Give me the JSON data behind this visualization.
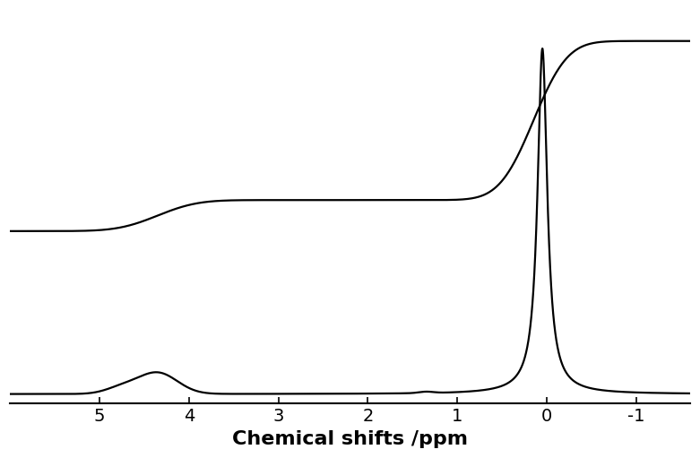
{
  "title": "",
  "xlabel": "Chemical shifts /ppm",
  "xlabel_fontsize": 16,
  "xlim": [
    6.0,
    -1.6
  ],
  "background_color": "#ffffff",
  "line_color": "#000000",
  "line_width": 1.6,
  "xticks": [
    5,
    4,
    3,
    2,
    1,
    0,
    -1
  ],
  "tick_fontsize": 14,
  "figsize": [
    7.81,
    5.11
  ],
  "dpi": 100
}
